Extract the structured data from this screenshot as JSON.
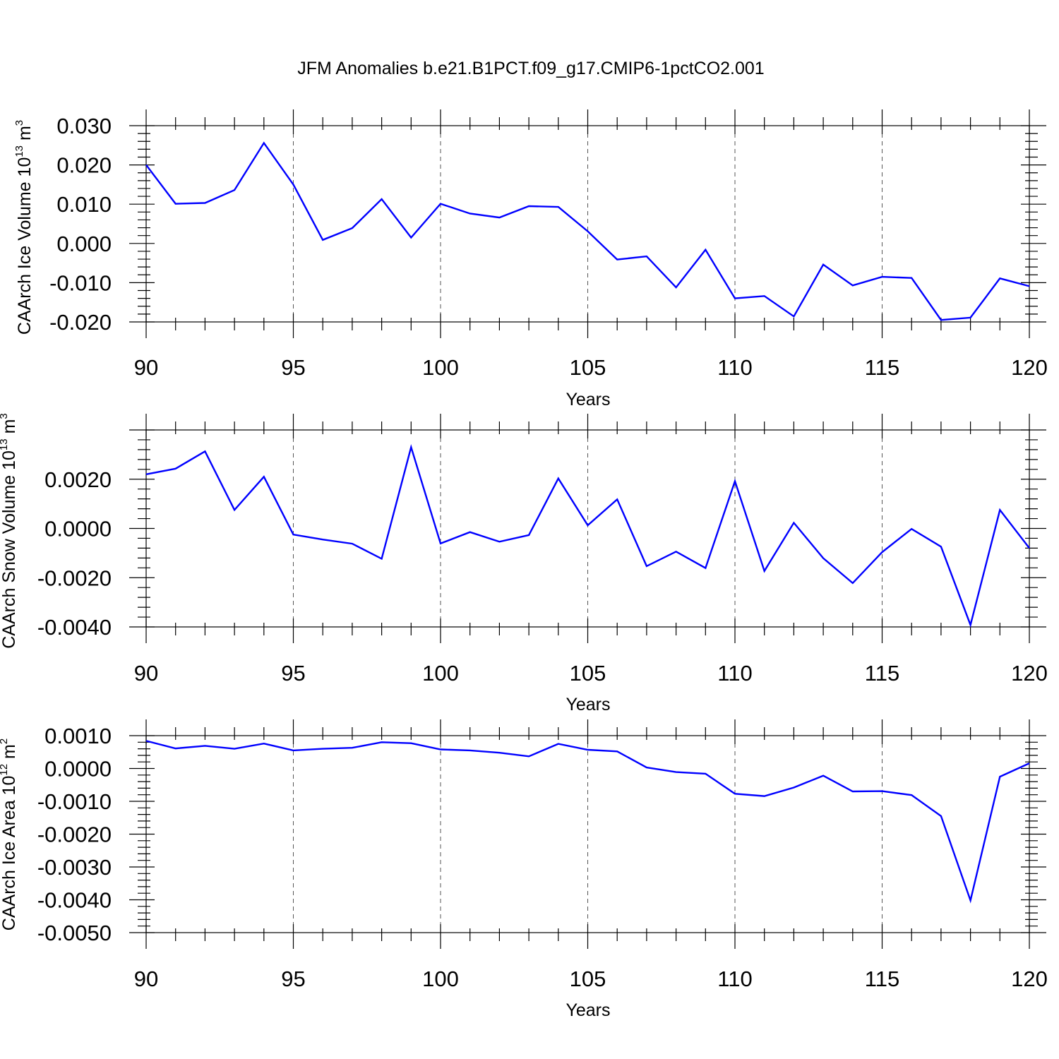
{
  "chart_data": [
    {
      "type": "line",
      "title": "JFM Anomalies b.e21.B1PCT.f09_g17.CMIP6-1pctCO2.001",
      "xlabel": "Years",
      "ylabel": "CAArch Ice Volume 10",
      "ylabel_sup": "13",
      "ylabel_unit": "m",
      "ylabel_unit_sup": "3",
      "xlim": [
        90,
        120
      ],
      "ylim": [
        -0.02,
        0.03
      ],
      "xticks": [
        90,
        95,
        100,
        105,
        110,
        115,
        120
      ],
      "xtick_labels": [
        "90",
        "95",
        "100",
        "105",
        "110",
        "115",
        "120"
      ],
      "yticks": [
        -0.02,
        -0.01,
        0.0,
        0.01,
        0.02,
        0.03
      ],
      "ytick_labels": [
        "-0.020",
        "-0.010",
        "0.000",
        "0.010",
        "0.020",
        "0.030"
      ],
      "grid": "dashed vertical at major x ticks",
      "color": "#0000ff",
      "x": [
        90,
        91,
        92,
        93,
        94,
        95,
        96,
        97,
        98,
        99,
        100,
        101,
        102,
        103,
        104,
        105,
        106,
        107,
        108,
        109,
        110,
        111,
        112,
        113,
        114,
        115,
        116,
        117,
        118,
        119,
        120
      ],
      "values": [
        0.02,
        0.0101,
        0.0103,
        0.0136,
        0.0256,
        0.015,
        0.0009,
        0.0039,
        0.0113,
        0.0015,
        0.0101,
        0.0076,
        0.0066,
        0.0095,
        0.0093,
        0.0031,
        -0.0041,
        -0.0033,
        -0.0112,
        -0.0016,
        -0.014,
        -0.0134,
        -0.0186,
        -0.0054,
        -0.0107,
        -0.0085,
        -0.0088,
        -0.0195,
        -0.0189,
        -0.0089,
        -0.0109
      ]
    },
    {
      "type": "line",
      "xlabel": "Years",
      "ylabel": "CAArch Snow Volume 10",
      "ylabel_sup": "13",
      "ylabel_unit": "m",
      "ylabel_unit_sup": "3",
      "xlim": [
        90,
        120
      ],
      "ylim": [
        -0.004,
        0.004
      ],
      "xticks": [
        90,
        95,
        100,
        105,
        110,
        115,
        120
      ],
      "xtick_labels": [
        "90",
        "95",
        "100",
        "105",
        "110",
        "115",
        "120"
      ],
      "yticks": [
        -0.004,
        -0.002,
        0.0,
        0.002
      ],
      "ytick_labels": [
        "-0.0040",
        "-0.0020",
        "0.0000",
        "0.0020"
      ],
      "grid": "dashed vertical at major x ticks",
      "color": "#0000ff",
      "x": [
        90,
        91,
        92,
        93,
        94,
        95,
        96,
        97,
        98,
        99,
        100,
        101,
        102,
        103,
        104,
        105,
        106,
        107,
        108,
        109,
        110,
        111,
        112,
        113,
        114,
        115,
        116,
        117,
        118,
        119,
        120
      ],
      "values": [
        0.0022,
        0.00243,
        0.00313,
        0.00075,
        0.0021,
        -0.00025,
        -0.00045,
        -0.00062,
        -0.00123,
        0.0033,
        -0.00061,
        -0.00015,
        -0.00054,
        -0.00027,
        0.00203,
        0.00013,
        0.00118,
        -0.00153,
        -0.00094,
        -0.00161,
        0.00192,
        -0.00173,
        0.00023,
        -0.00121,
        -0.00222,
        -0.00096,
        -2e-05,
        -0.00074,
        -0.00392,
        0.00075,
        -0.0008
      ]
    },
    {
      "type": "line",
      "xlabel": "Years",
      "ylabel": "CAArch Ice Area 10",
      "ylabel_sup": "12",
      "ylabel_unit": "m",
      "ylabel_unit_sup": "2",
      "xlim": [
        90,
        120
      ],
      "ylim": [
        -0.005,
        0.001
      ],
      "xticks": [
        90,
        95,
        100,
        105,
        110,
        115,
        120
      ],
      "xtick_labels": [
        "90",
        "95",
        "100",
        "105",
        "110",
        "115",
        "120"
      ],
      "yticks": [
        -0.005,
        -0.004,
        -0.003,
        -0.002,
        -0.001,
        0.0,
        0.001
      ],
      "ytick_labels": [
        "-0.0050",
        "-0.0040",
        "-0.0030",
        "-0.0020",
        "-0.0010",
        "0.0000",
        "0.0010"
      ],
      "grid": "dashed vertical at major x ticks",
      "color": "#0000ff",
      "x": [
        90,
        91,
        92,
        93,
        94,
        95,
        96,
        97,
        98,
        99,
        100,
        101,
        102,
        103,
        104,
        105,
        106,
        107,
        108,
        109,
        110,
        111,
        112,
        113,
        114,
        115,
        116,
        117,
        118,
        119,
        120
      ],
      "values": [
        0.00084,
        0.00061,
        0.00069,
        0.0006,
        0.00076,
        0.00055,
        0.0006,
        0.00063,
        0.0008,
        0.00077,
        0.00058,
        0.00055,
        0.00048,
        0.00037,
        0.00075,
        0.00057,
        0.00052,
        3e-05,
        -0.00011,
        -0.00016,
        -0.00077,
        -0.00084,
        -0.00058,
        -0.00022,
        -0.0007,
        -0.00069,
        -0.00081,
        -0.00145,
        -0.00402,
        -0.00025,
        0.00016
      ]
    }
  ]
}
